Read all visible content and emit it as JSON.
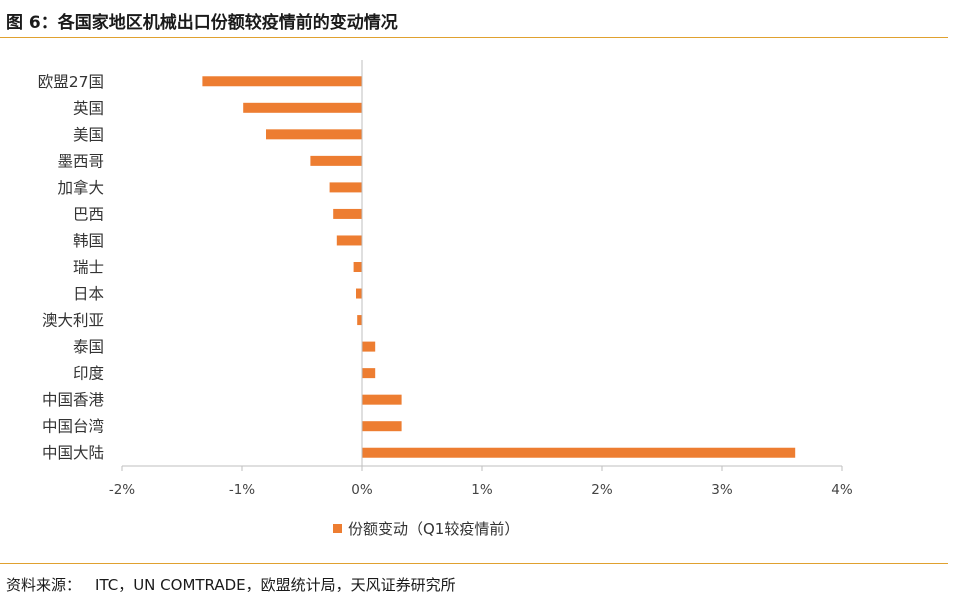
{
  "header": {
    "title": "图 6：各国家地区机械出口份额较疫情前的变动情况"
  },
  "footer": {
    "source_label": "资料来源：",
    "source_text": "ITC，UN COMTRADE，欧盟统计局，天风证券研究所"
  },
  "colors": {
    "accent_rule": "#e0a12f",
    "bar": "#ed7d31",
    "axis": "#bfbfbf"
  },
  "chart_data": {
    "type": "bar",
    "orientation": "horizontal",
    "categories": [
      "欧盟27国",
      "英国",
      "美国",
      "墨西哥",
      "加拿大",
      "巴西",
      "韩国",
      "瑞士",
      "日本",
      "澳大利亚",
      "泰国",
      "印度",
      "中国香港",
      "中国台湾",
      "中国大陆"
    ],
    "series": [
      {
        "name": "份额变动（Q1较疫情前）",
        "values": [
          -1.33,
          -0.99,
          -0.8,
          -0.43,
          -0.27,
          -0.24,
          -0.21,
          -0.07,
          -0.05,
          -0.04,
          0.11,
          0.11,
          0.33,
          0.33,
          3.61
        ]
      }
    ],
    "xlim": [
      -2,
      4
    ],
    "xticks": [
      "-2%",
      "-1%",
      "0%",
      "1%",
      "2%",
      "3%",
      "4%"
    ],
    "unit": "%",
    "legend_position": "bottom",
    "grid": false
  }
}
